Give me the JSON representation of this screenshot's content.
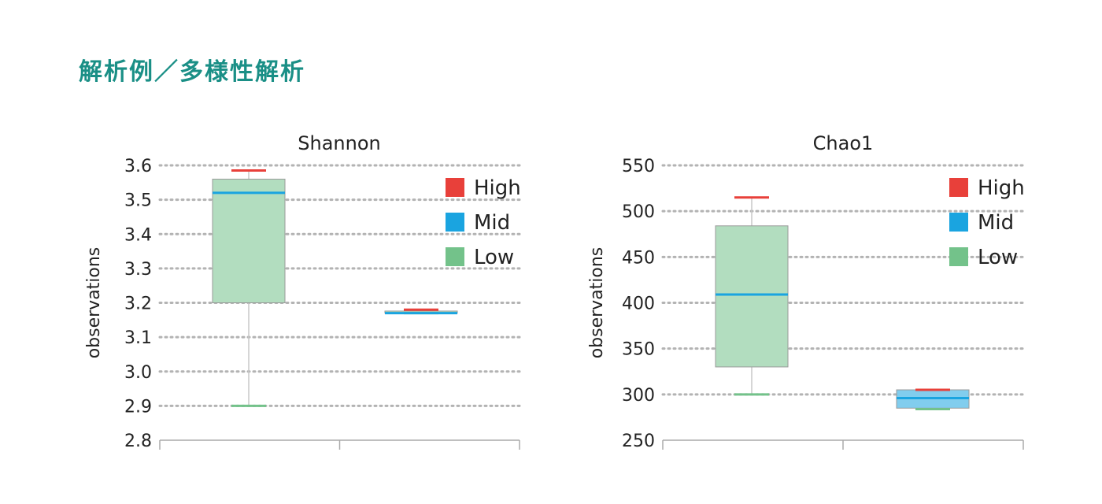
{
  "heading": "解析例／多様性解析",
  "colors": {
    "High": "#e8403a",
    "Mid": "#1aa4e0",
    "Low": "#73c28a",
    "grid": "#b3b3b3",
    "axis": "#aaaaaa",
    "text": "#222222"
  },
  "chart_data": [
    {
      "type": "box",
      "title": "Shannon",
      "ylabel": "observations",
      "ylim": [
        2.8,
        3.6
      ],
      "yticks": [
        "3.6",
        "3.5",
        "3.4",
        "3.3",
        "3.2",
        "3.1",
        "3.0",
        "2.9",
        "2.8"
      ],
      "grid": true,
      "legend": {
        "position": "top-right",
        "entries": [
          "High",
          "Mid",
          "Low"
        ]
      },
      "groups": [
        {
          "high": 3.585,
          "q3": 3.56,
          "mid": 3.52,
          "q1": 3.2,
          "low": 2.9,
          "box_color": "Low"
        },
        {
          "high": 3.18,
          "q3": 3.176,
          "mid": 3.17,
          "q1": 3.17,
          "low": 3.17,
          "box_color": "Low"
        }
      ]
    },
    {
      "type": "box",
      "title": "Chao1",
      "ylabel": "observations",
      "ylim": [
        250,
        550
      ],
      "yticks": [
        "550",
        "500",
        "450",
        "400",
        "350",
        "300",
        "250"
      ],
      "grid": true,
      "legend": {
        "position": "top-right",
        "entries": [
          "High",
          "Mid",
          "Low"
        ]
      },
      "groups": [
        {
          "high": 515,
          "q3": 484,
          "mid": 409,
          "q1": 330,
          "low": 300,
          "box_color": "Low"
        },
        {
          "high": 305,
          "q3": 305,
          "mid": 296,
          "q1": 285,
          "low": 284,
          "box_color": "Mid"
        }
      ]
    }
  ]
}
